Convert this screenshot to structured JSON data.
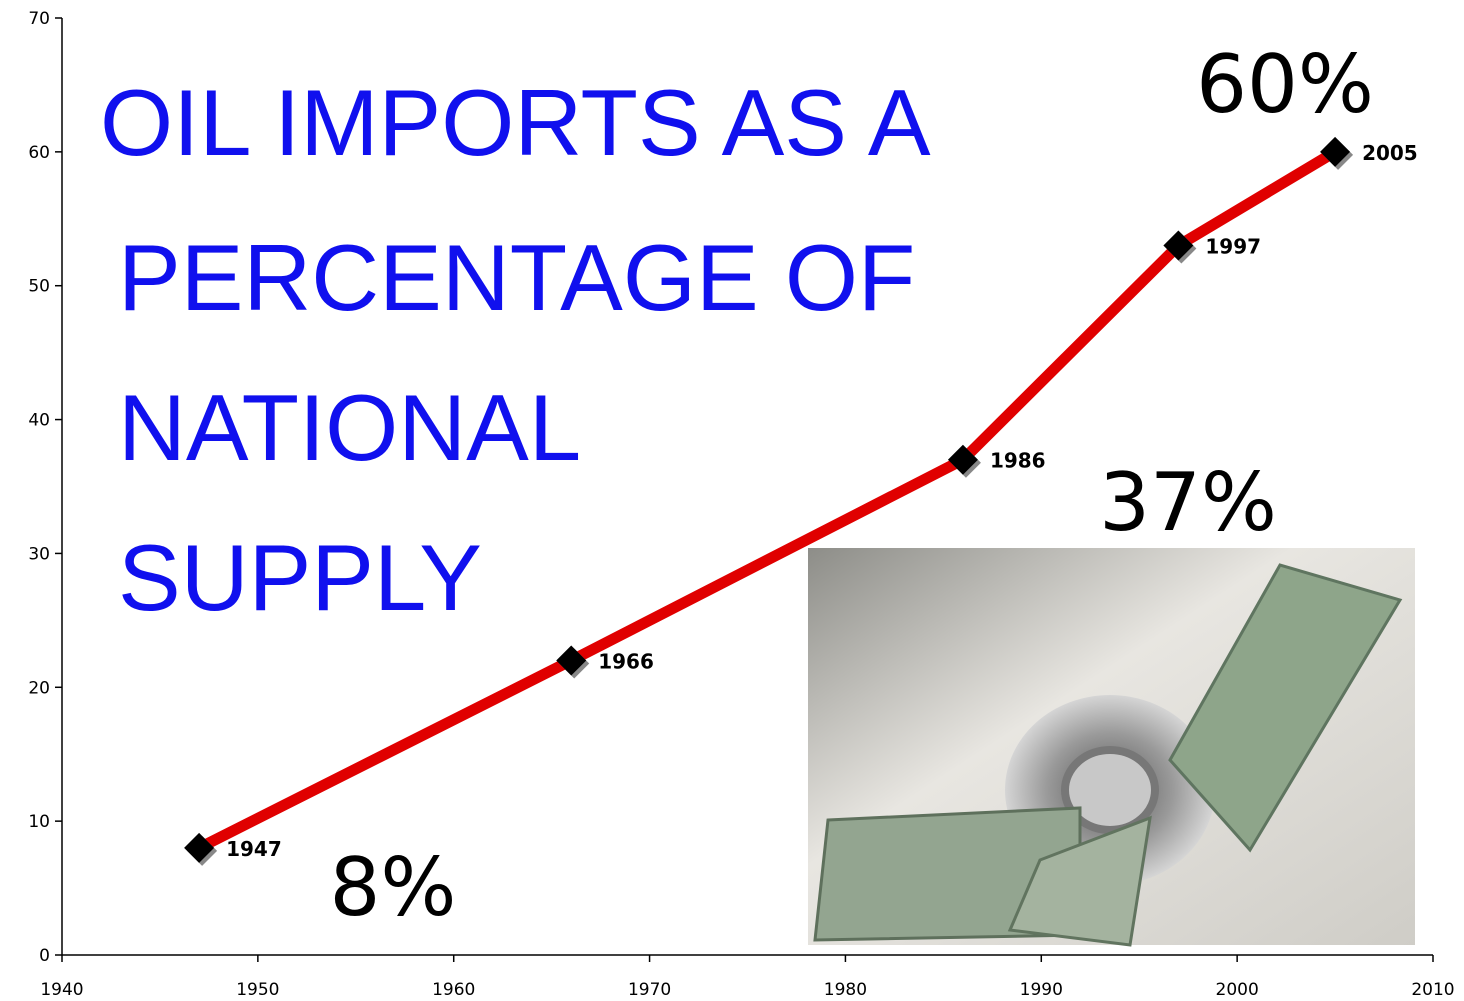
{
  "chart_data": {
    "type": "line",
    "title": [
      "OIL IMPORTS AS A",
      "PERCENTAGE OF",
      "NATIONAL",
      "SUPPLY"
    ],
    "x": [
      1947,
      1966,
      1986,
      1997,
      2005
    ],
    "series": [
      {
        "color": "#e00000",
        "values": [
          8,
          22,
          37,
          53,
          60
        ]
      }
    ],
    "annotations": [
      "8%",
      "37%",
      "60%"
    ],
    "xlim": [
      1940,
      2010
    ],
    "xticks": [
      1940,
      1950,
      1960,
      1970,
      1980,
      1990,
      2000,
      2010
    ],
    "ylim": [
      0,
      70
    ],
    "yticks": [
      0,
      10,
      20,
      30,
      40,
      50,
      60,
      70
    ],
    "grid": false
  }
}
